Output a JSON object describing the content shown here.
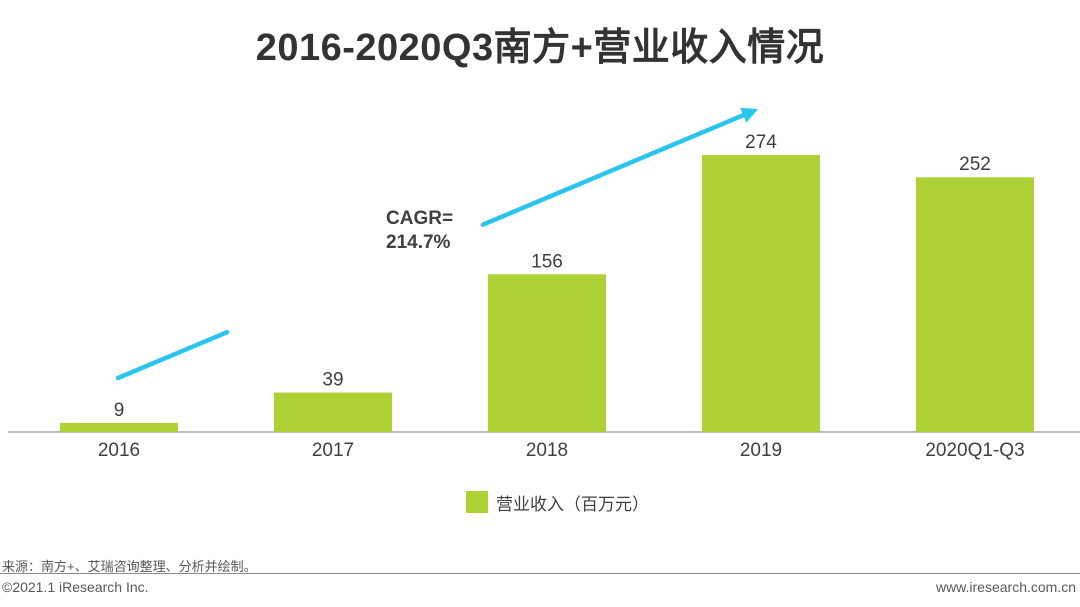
{
  "chart_data": {
    "type": "bar",
    "title": "2016-2020Q3南方+营业收入情况",
    "categories": [
      "2016",
      "2017",
      "2018",
      "2019",
      "2020Q1-Q3"
    ],
    "series": [
      {
        "name": "营业收入（百万元）",
        "values": [
          9,
          39,
          156,
          274,
          252
        ]
      }
    ],
    "ylim": [
      0,
      274
    ],
    "xlabel": "",
    "ylabel": "",
    "legend_position": "bottom-center",
    "annotation": {
      "line1": "CAGR=",
      "line2": "214.7%"
    },
    "grid": false
  },
  "colors": {
    "bar": "#aed135",
    "arrow": "#29c5ee",
    "axis": "#a6a6a6"
  },
  "footer": {
    "source": "来源：南方+、艾瑞咨询整理、分析并绘制。",
    "copyright": "©2021.1 iResearch Inc.",
    "website": "www.iresearch.com.cn"
  }
}
